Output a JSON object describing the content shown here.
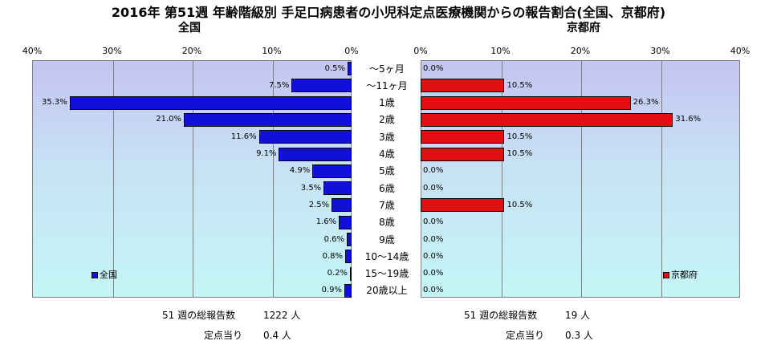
{
  "title": "2016年 第51週 年齢階級別 手足口病患者の小児科定点医療機関からの報告割合(全国、京都府)",
  "chart_data": [
    {
      "type": "bar",
      "subtitle": "全国",
      "orientation": "horizontal-reversed",
      "xlim": [
        0,
        40
      ],
      "ticks": [
        "40%",
        "30%",
        "20%",
        "10%",
        "0%"
      ],
      "grid": true,
      "legend": {
        "label": "全国",
        "color": "#1010d8",
        "position": "bottom-left"
      },
      "categories": [
        "～5ヶ月",
        "～11ヶ月",
        "1歳",
        "2歳",
        "3歳",
        "4歳",
        "5歳",
        "6歳",
        "7歳",
        "8歳",
        "9歳",
        "10～14歳",
        "15～19歳",
        "20歳以上"
      ],
      "values": [
        0.5,
        7.5,
        35.3,
        21.0,
        11.6,
        9.1,
        4.9,
        3.5,
        2.5,
        1.6,
        0.6,
        0.8,
        0.2,
        0.9
      ],
      "labels": [
        "0.5%",
        "7.5%",
        "35.3%",
        "21.0%",
        "11.6%",
        "9.1%",
        "4.9%",
        "3.5%",
        "2.5%",
        "1.6%",
        "0.6%",
        "0.8%",
        "0.2%",
        "0.9%"
      ]
    },
    {
      "type": "bar",
      "subtitle": "京都府",
      "orientation": "horizontal",
      "xlim": [
        0,
        40
      ],
      "ticks": [
        "0%",
        "10%",
        "20%",
        "30%",
        "40%"
      ],
      "grid": true,
      "legend": {
        "label": "京都府",
        "color": "#e01010",
        "position": "bottom-right"
      },
      "categories": [
        "～5ヶ月",
        "～11ヶ月",
        "1歳",
        "2歳",
        "3歳",
        "4歳",
        "5歳",
        "6歳",
        "7歳",
        "8歳",
        "9歳",
        "10～14歳",
        "15～19歳",
        "20歳以上"
      ],
      "values": [
        0.0,
        10.5,
        26.3,
        31.6,
        10.5,
        10.5,
        0.0,
        0.0,
        10.5,
        0.0,
        0.0,
        0.0,
        0.0,
        0.0
      ],
      "labels": [
        "0.0%",
        "10.5%",
        "26.3%",
        "31.6%",
        "10.5%",
        "10.5%",
        "0.0%",
        "0.0%",
        "10.5%",
        "0.0%",
        "0.0%",
        "0.0%",
        "0.0%",
        "0.0%"
      ]
    }
  ],
  "footer": {
    "national": {
      "reports_label": "51 週の総報告数",
      "reports_value": "1222 人",
      "per_site_label": "定点当り",
      "per_site_value": "0.4 人"
    },
    "kyoto": {
      "reports_label": "51 週の総報告数",
      "reports_value": "19 人",
      "per_site_label": "定点当り",
      "per_site_value": "0.3 人"
    }
  }
}
